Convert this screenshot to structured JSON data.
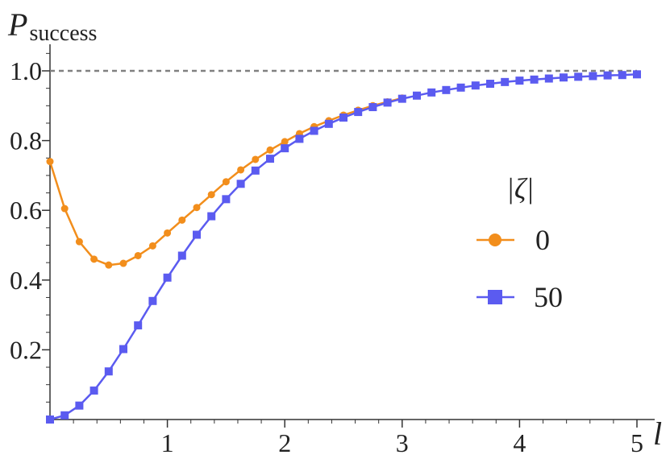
{
  "chart_data": {
    "type": "line",
    "ylabel": "P",
    "ylabel_sub": "success",
    "xlabel": "l",
    "xlim": [
      0,
      5.1
    ],
    "ylim": [
      0,
      1.08
    ],
    "x_ticks": [
      1,
      2,
      3,
      4,
      5
    ],
    "x_tick_labels": [
      "1",
      "2",
      "3",
      "4",
      "5"
    ],
    "y_ticks": [
      0.2,
      0.4,
      0.6,
      0.8,
      1.0
    ],
    "y_tick_labels": [
      "0.2",
      "0.4",
      "0.6",
      "0.8",
      "1.0"
    ],
    "reference_line": {
      "y": 1.0,
      "style": "dashed",
      "color": "#808080"
    },
    "grid": false,
    "legend": {
      "title": "|ζ|",
      "placement": "right"
    },
    "series": [
      {
        "name": "0",
        "color": "#f28e1c",
        "marker": "circle",
        "x": [
          0,
          0.125,
          0.25,
          0.375,
          0.5,
          0.625,
          0.75,
          0.875,
          1.0,
          1.125,
          1.25,
          1.375,
          1.5,
          1.625,
          1.75,
          1.875,
          2.0,
          2.125,
          2.25,
          2.375,
          2.5,
          2.625,
          2.75,
          2.875,
          3.0
        ],
        "y": [
          0.74,
          0.605,
          0.51,
          0.46,
          0.443,
          0.448,
          0.47,
          0.498,
          0.535,
          0.572,
          0.608,
          0.645,
          0.682,
          0.716,
          0.746,
          0.773,
          0.797,
          0.82,
          0.84,
          0.857,
          0.873,
          0.887,
          0.9,
          0.911,
          0.922
        ]
      },
      {
        "name": "50",
        "color": "#5b5bf0",
        "marker": "square",
        "x": [
          0,
          0.125,
          0.25,
          0.375,
          0.5,
          0.625,
          0.75,
          0.875,
          1.0,
          1.125,
          1.25,
          1.375,
          1.5,
          1.625,
          1.75,
          1.875,
          2.0,
          2.125,
          2.25,
          2.375,
          2.5,
          2.625,
          2.75,
          2.875,
          3.0,
          3.125,
          3.25,
          3.375,
          3.5,
          3.625,
          3.75,
          3.875,
          4.0,
          4.125,
          4.25,
          4.375,
          4.5,
          4.625,
          4.75,
          4.875,
          5.0
        ],
        "y": [
          0.0,
          0.012,
          0.04,
          0.083,
          0.138,
          0.202,
          0.27,
          0.34,
          0.407,
          0.47,
          0.53,
          0.583,
          0.632,
          0.676,
          0.714,
          0.748,
          0.778,
          0.805,
          0.828,
          0.848,
          0.866,
          0.882,
          0.896,
          0.909,
          0.92,
          0.929,
          0.938,
          0.945,
          0.952,
          0.958,
          0.963,
          0.968,
          0.972,
          0.975,
          0.978,
          0.981,
          0.983,
          0.985,
          0.987,
          0.988,
          0.99
        ]
      }
    ]
  }
}
